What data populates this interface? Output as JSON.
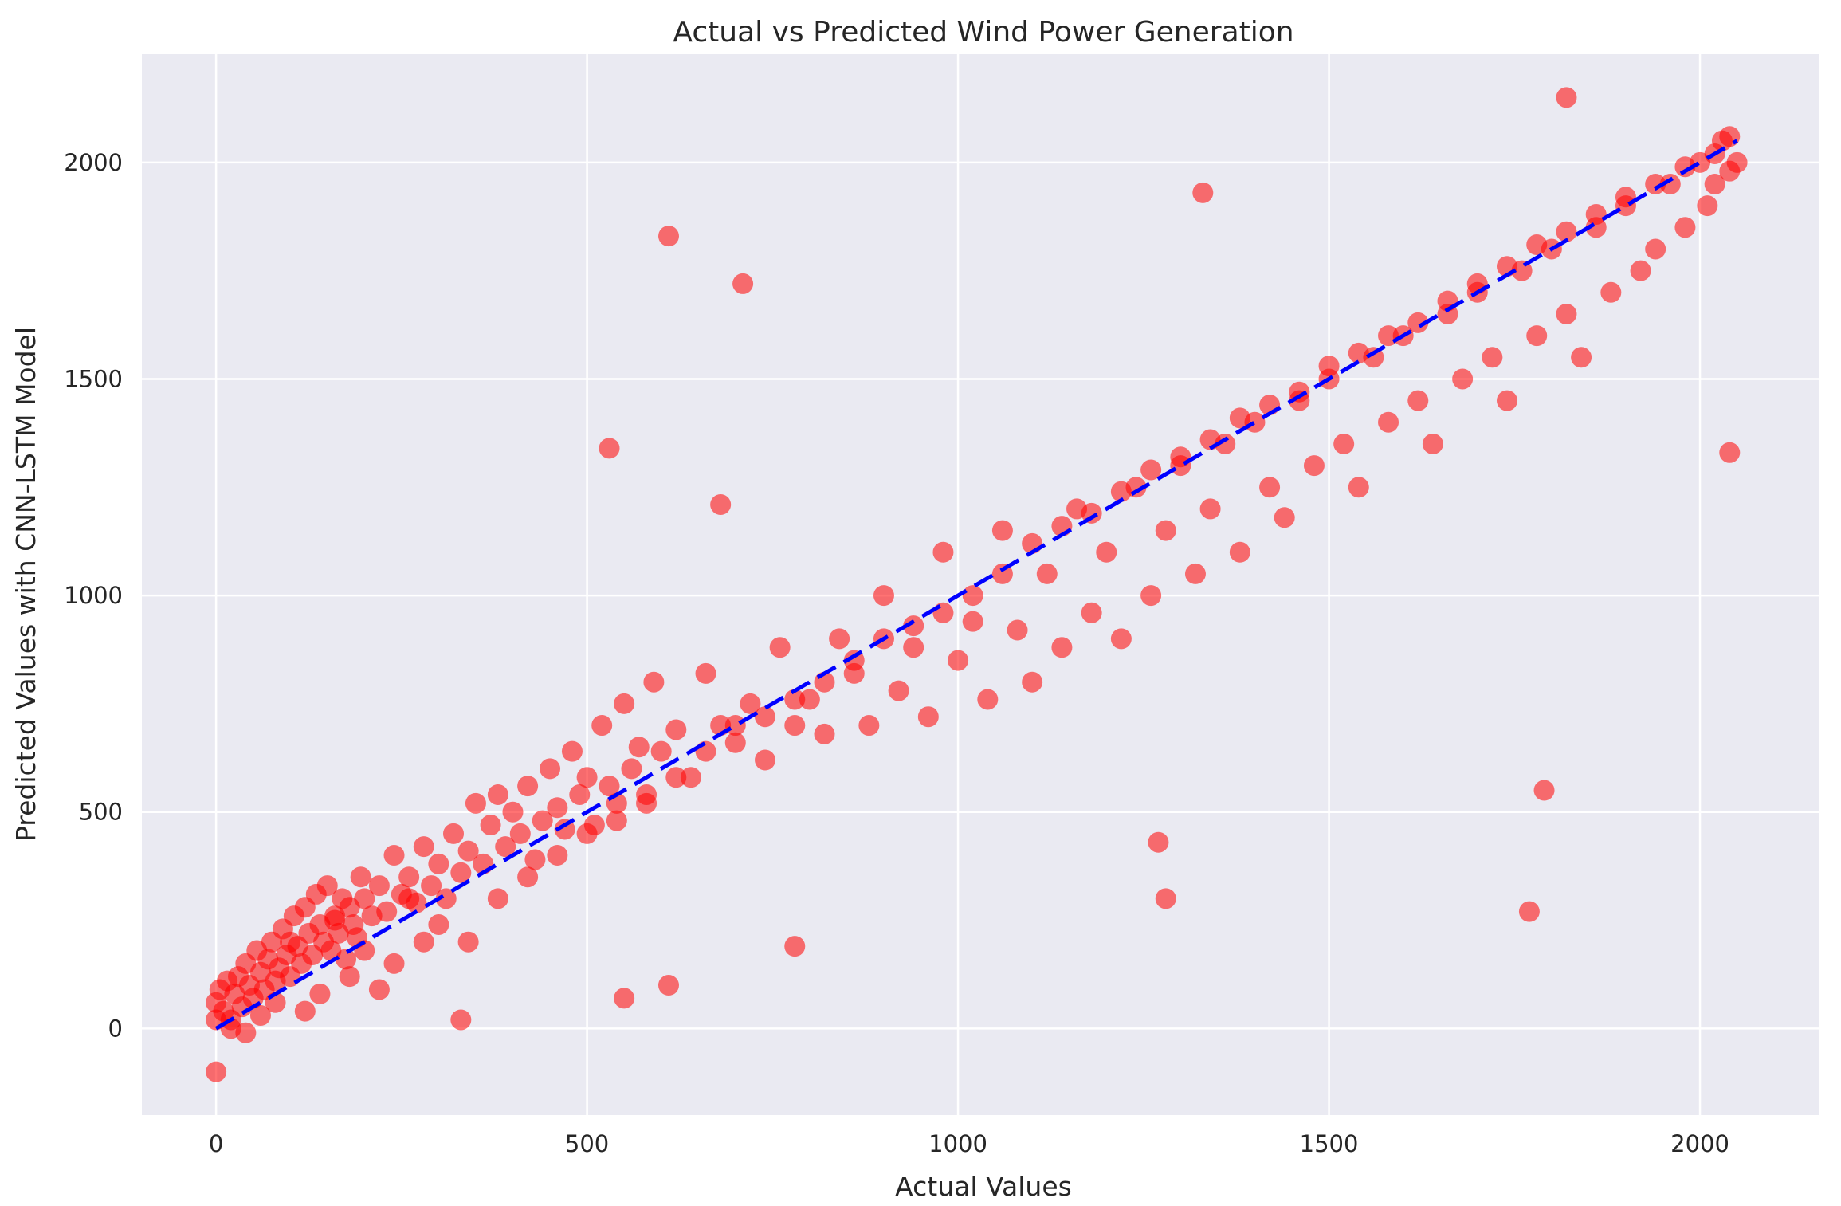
{
  "chart_data": {
    "type": "scatter",
    "title": "Actual vs Predicted Wind Power Generation",
    "xlabel": "Actual Values",
    "ylabel": "Predicted Values with CNN-LSTM Model",
    "xlim": [
      -100,
      2160
    ],
    "ylim": [
      -200,
      2250
    ],
    "xticks": [
      0,
      500,
      1000,
      1500,
      2000
    ],
    "yticks": [
      0,
      500,
      1000,
      1500,
      2000
    ],
    "grid": true,
    "legend": "none",
    "colors": {
      "points": "#ff0000",
      "reference_line": "#0000ff",
      "plot_background": "#eaeaf2",
      "grid": "#ffffff"
    },
    "reference_line": {
      "x": [
        0,
        2050
      ],
      "y": [
        0,
        2050
      ],
      "style": "dashed"
    },
    "series": [
      {
        "x": [
          0,
          5,
          10,
          15,
          20,
          25,
          30,
          35,
          40,
          45,
          50,
          55,
          60,
          65,
          70,
          75,
          80,
          85,
          90,
          95,
          100,
          105,
          110,
          115,
          120,
          125,
          130,
          135,
          140,
          145,
          150,
          155,
          160,
          165,
          170,
          175,
          180,
          185,
          190,
          195,
          200,
          210,
          220,
          230,
          240,
          250,
          260,
          270,
          280,
          290,
          300,
          310,
          320,
          330,
          340,
          350,
          360,
          370,
          380,
          390,
          400,
          410,
          420,
          430,
          440,
          450,
          460,
          470,
          480,
          490,
          500,
          510,
          520,
          530,
          540,
          550,
          560,
          570,
          580,
          590,
          600,
          620,
          640,
          660,
          680,
          700,
          720,
          740,
          760,
          780,
          800,
          820,
          840,
          860,
          880,
          900,
          920,
          940,
          960,
          980,
          1000,
          1020,
          1040,
          1060,
          1080,
          1100,
          1120,
          1140,
          1160,
          1180,
          1200,
          1220,
          1240,
          1260,
          1280,
          1300,
          1320,
          1340,
          1360,
          1380,
          1400,
          1420,
          1440,
          1460,
          1480,
          1500,
          1520,
          1540,
          1560,
          1580,
          1600,
          1620,
          1640,
          1660,
          1680,
          1700,
          1720,
          1740,
          1760,
          1780,
          1800,
          1820,
          1840,
          1860,
          1880,
          1900,
          1920,
          1940,
          1960,
          1980,
          2000,
          2010,
          2020,
          2030,
          2040,
          2050,
          0,
          20,
          40,
          60,
          80,
          100,
          120,
          140,
          160,
          180,
          200,
          220,
          240,
          260,
          280,
          300,
          340,
          380,
          420,
          460,
          500,
          540,
          580,
          620,
          660,
          700,
          740,
          780,
          820,
          860,
          900,
          940,
          980,
          1020,
          1060,
          1100,
          1140,
          1180,
          1220,
          1260,
          1300,
          1340,
          1380,
          1420,
          1460,
          1500,
          1540,
          1580,
          1620,
          1660,
          1700,
          1740,
          1780,
          1820,
          1860,
          1900,
          1940,
          1980,
          2020,
          2040,
          610,
          710,
          530,
          680,
          1330,
          1820,
          2040,
          1770,
          1790,
          780,
          330,
          550,
          610,
          1280,
          1270,
          0
        ],
        "y": [
          60,
          90,
          40,
          110,
          20,
          80,
          120,
          50,
          150,
          100,
          70,
          180,
          130,
          90,
          160,
          200,
          110,
          140,
          230,
          170,
          120,
          260,
          190,
          150,
          280,
          220,
          170,
          310,
          240,
          200,
          330,
          180,
          260,
          220,
          300,
          160,
          280,
          240,
          210,
          350,
          300,
          260,
          330,
          270,
          400,
          310,
          350,
          290,
          420,
          330,
          380,
          300,
          450,
          360,
          410,
          520,
          380,
          470,
          540,
          420,
          500,
          450,
          560,
          390,
          480,
          600,
          510,
          460,
          640,
          540,
          580,
          470,
          700,
          560,
          520,
          750,
          600,
          650,
          540,
          800,
          640,
          690,
          580,
          820,
          700,
          660,
          750,
          620,
          880,
          700,
          760,
          680,
          900,
          820,
          700,
          1000,
          780,
          880,
          720,
          1100,
          850,
          940,
          760,
          1150,
          920,
          800,
          1050,
          880,
          1200,
          960,
          1100,
          900,
          1250,
          1000,
          1150,
          1300,
          1050,
          1200,
          1350,
          1100,
          1400,
          1250,
          1180,
          1450,
          1300,
          1500,
          1350,
          1250,
          1550,
          1400,
          1600,
          1450,
          1350,
          1650,
          1500,
          1700,
          1550,
          1450,
          1750,
          1600,
          1800,
          1650,
          1550,
          1850,
          1700,
          1900,
          1750,
          1800,
          1950,
          1850,
          2000,
          1900,
          1950,
          2050,
          1980,
          2000,
          20,
          0,
          -10,
          30,
          60,
          200,
          40,
          80,
          250,
          120,
          180,
          90,
          150,
          300,
          200,
          240,
          200,
          300,
          350,
          400,
          450,
          480,
          520,
          580,
          640,
          700,
          720,
          760,
          800,
          850,
          900,
          930,
          960,
          1000,
          1050,
          1120,
          1160,
          1190,
          1240,
          1290,
          1320,
          1360,
          1410,
          1440,
          1470,
          1530,
          1560,
          1600,
          1630,
          1680,
          1720,
          1760,
          1810,
          1840,
          1880,
          1920,
          1950,
          1990,
          2020,
          2060,
          1830,
          1720,
          1340,
          1210,
          1930,
          2150,
          1330,
          270,
          550,
          190,
          20,
          70,
          100,
          300,
          430,
          -100
        ]
      }
    ]
  }
}
